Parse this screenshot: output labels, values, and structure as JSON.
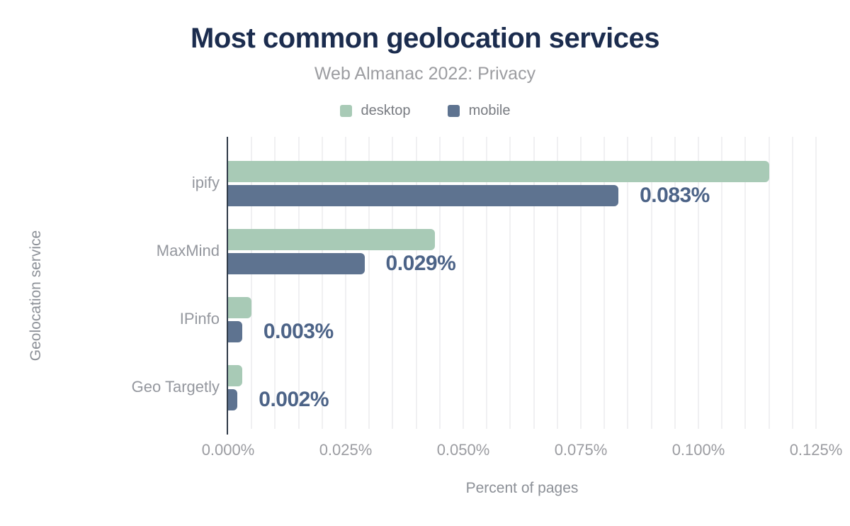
{
  "style": {
    "background": "#ffffff",
    "title_color": "#1b2c4e",
    "subtitle_color": "#9c9da1",
    "legend_text_color": "#797c82",
    "category_label_color": "#94979e",
    "tick_label_color": "#9b9ca1",
    "axis_title_color": "#8c9097",
    "value_label_color": "#4c6387",
    "axis_line_color": "#2f3a48",
    "gridline_color": "#f0f0f2"
  },
  "axes": {
    "x_ticks": [
      {
        "label": "0.000%",
        "value": 0
      },
      {
        "label": "0.025%",
        "value": 0.025
      },
      {
        "label": "0.050%",
        "value": 0.05
      },
      {
        "label": "0.075%",
        "value": 0.075
      },
      {
        "label": "0.100%",
        "value": 0.1
      },
      {
        "label": "0.125%",
        "value": 0.125
      }
    ]
  },
  "chart_data": {
    "type": "bar",
    "orientation": "horizontal",
    "title": "Most common geolocation services",
    "subtitle": "Web Almanac 2022: Privacy",
    "xlabel": "Percent of pages",
    "ylabel": "Geolocation service",
    "xlim": [
      0,
      0.125
    ],
    "grid": {
      "x_minor_step": 0.005
    },
    "legend_position": "top-center",
    "categories": [
      "ipify",
      "MaxMind",
      "IPinfo",
      "Geo Targetly"
    ],
    "series": [
      {
        "name": "desktop",
        "color": "#a8cab6",
        "values": [
          0.115,
          0.044,
          0.005,
          0.003
        ]
      },
      {
        "name": "mobile",
        "color": "#5e7390",
        "values": [
          0.083,
          0.029,
          0.003,
          0.002
        ]
      }
    ],
    "annotations": [
      {
        "category": "ipify",
        "series": "mobile",
        "text": "0.083%"
      },
      {
        "category": "MaxMind",
        "series": "mobile",
        "text": "0.029%"
      },
      {
        "category": "IPinfo",
        "series": "mobile",
        "text": "0.003%"
      },
      {
        "category": "Geo Targetly",
        "series": "mobile",
        "text": "0.002%"
      }
    ]
  }
}
